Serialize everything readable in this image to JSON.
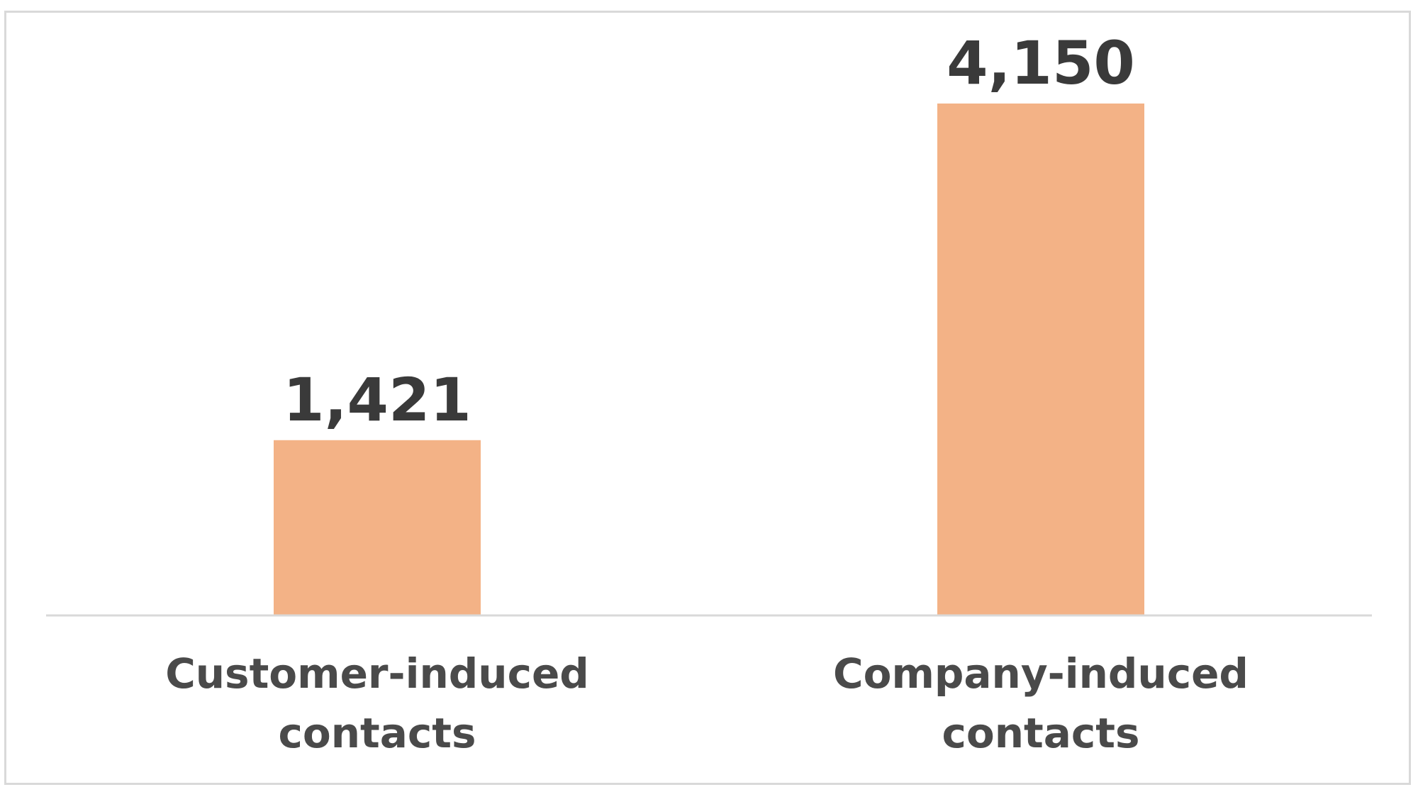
{
  "chart_data": {
    "type": "bar",
    "categories": [
      [
        "Customer-induced",
        "contacts"
      ],
      [
        "Company-induced",
        "contacts"
      ]
    ],
    "values": [
      1421,
      4150
    ],
    "data_labels": [
      "1,421",
      "4,150"
    ],
    "ylim": [
      0,
      4800
    ],
    "grid": false,
    "legend": "none",
    "colors": {
      "bar": "#f3b286",
      "axis": "#d9d9d9",
      "frame": "#d9d9d9",
      "value_text": "#3a3a3a",
      "category_text": "#4a4a4a"
    }
  }
}
